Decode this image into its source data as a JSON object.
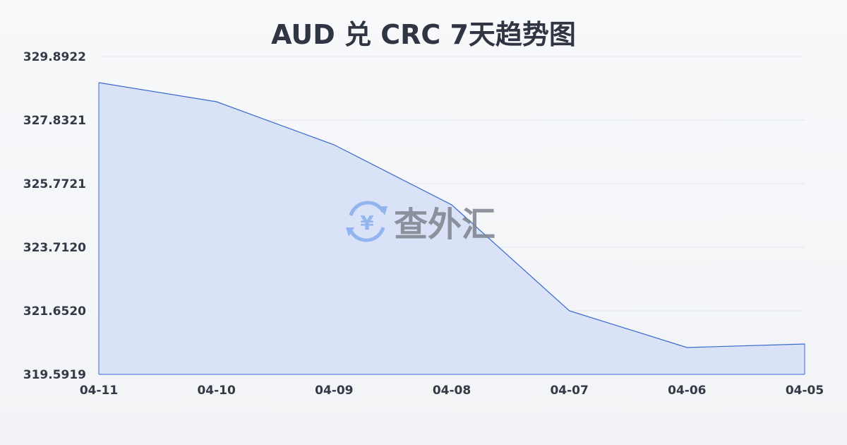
{
  "chart_data": {
    "type": "area",
    "title": "AUD 兑 CRC 7天趋势图",
    "categories": [
      "04-11",
      "04-10",
      "04-09",
      "04-08",
      "04-07",
      "04-06",
      "04-05"
    ],
    "series": [
      {
        "values": [
          329.045,
          328.427,
          327.031,
          325.085,
          321.652,
          320.462,
          320.576
        ]
      }
    ],
    "yticks": [
      "329.8922",
      "327.8321",
      "325.7721",
      "323.7120",
      "321.6520",
      "319.5919"
    ],
    "ylim": [
      319.5919,
      329.8922
    ],
    "grid": true,
    "colors": {
      "line": "#3a68d0",
      "fill": "#d6e0f5",
      "grid": "#e3e6ea"
    }
  },
  "watermark": {
    "text": "查外汇",
    "icon": "yen-exchange-icon"
  }
}
